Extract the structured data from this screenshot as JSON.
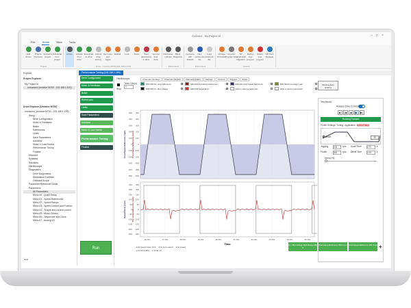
{
  "window": {
    "title": "Connect - My Project.ld"
  },
  "menu": [
    "File",
    "Home",
    "View",
    "Tools"
  ],
  "ribbon": {
    "groups": [
      {
        "label": "Project",
        "items": [
          {
            "label": "Add drives",
            "color": "#3a9b4a"
          },
          {
            "label": "Project Overview",
            "color": "#4a6fb0"
          },
          {
            "label": "Upload to project",
            "color": "#3a9b4a"
          },
          {
            "label": "Download from project",
            "color": "#3a9b4a"
          }
        ]
      },
      {
        "label": "Drive - Unidrive M700 (192.168.1.100)",
        "items": [
          {
            "label": "Online",
            "color": "#555",
            "selected": true
          },
          {
            "label": "Upload from drive",
            "color": "#3a9b4a"
          },
          {
            "label": "Download to drive",
            "color": "#3a9b4a"
          },
          {
            "label": "Cancel drive activity",
            "color": "#bbb"
          },
          {
            "label": "Set motor and digital",
            "color": "#e07a30"
          },
          {
            "label": "Default",
            "color": "#e07a30"
          },
          {
            "label": "Lock",
            "color": "#bbb"
          },
          {
            "label": "Reset",
            "color": "#e07a30"
          },
          {
            "label": "Save parameters in drive",
            "color": "#c0304a"
          },
          {
            "label": "Set real time clock",
            "color": "#e07a30"
          }
        ]
      },
      {
        "label": "Parameters",
        "items": [
          {
            "label": "Parameter Listings",
            "color": "#555"
          },
          {
            "label": "Block Diagrams",
            "color": "#555"
          }
        ]
      },
      {
        "label": "Parameters",
        "items": [
          {
            "label": "Compare with defaults",
            "color": "#999"
          },
          {
            "label": "New parameter file",
            "color": "#2a5ab0"
          },
          {
            "label": "Load parameter file",
            "color": "#ccc"
          }
        ]
      },
      {
        "label": "Actions",
        "items": [
          {
            "label": "Change Firmware",
            "color": "#e07a30"
          },
          {
            "label": "Keypad Programming",
            "color": "#777"
          },
          {
            "label": "SP Unidrive/M Migration",
            "color": "#e07a30"
          },
          {
            "label": "Deploy user program",
            "color": "#e07a30"
          },
          {
            "label": "Delete user program",
            "color": "#d03030"
          },
          {
            "label": "SD Card Manager",
            "color": "#2a7ac0"
          }
        ]
      }
    ]
  },
  "explorer": {
    "title": "Explorer",
    "project_header": "Project Explorer",
    "project_items": [
      "My Project.ld",
      "Unnamed (Unidrive M700 - 192.168.1.100)"
    ],
    "drive_header": "Drive Explorer (Unidrive M700)",
    "drive_items": [
      "Unnamed (Unidrive M700 - 192.168.1.100)",
      "Setup",
      "Drive Configuration",
      "Motor & Feedback",
      "Brake",
      "References",
      "Limits",
      "Save Parameters",
      "Autotune",
      "Motor & Load Inertia",
      "Performance Tuning",
      "Finalise",
      "Ethernet",
      "Systems",
      "Solutions",
      "Oscilloscope",
      "Diagnostics",
      "Drive Diagnostics",
      "Destination Conflicts",
      "Onboard Scope",
      "Parameter Reference Guide",
      "Parameters",
      "All Parameters",
      "Menu 00 - Quick Setup",
      "Menu 01 - Speed References",
      "Menu 02 - Speed Ramps",
      "Menu 03 - Speed Control and Position",
      "Menu 04 - Torque and current control",
      "Menu 05 - Motor Control",
      "Menu 06 - Sequencer and Clock",
      "Menu 07 - Analog I/O"
    ],
    "help": "Help"
  },
  "doc_tab": "Performance Tuning (192.168.1.100)",
  "nav": [
    "Drive Configuration",
    "Motor & Feedback",
    "Brake",
    "References",
    "Limits",
    "Save Parameters",
    "Autotune",
    "Motor & Load Inertia",
    "Performance Tuning",
    "Finalise"
  ],
  "run_label": "Run",
  "scope": {
    "label": "Oscilloscope",
    "stop_label": "Stop",
    "timediv_label": "Time / Div(s)",
    "timediv_value": "1",
    "tabs": [
      "Channels (Analog)",
      "Channels (Digital)",
      "Channels (Math)",
      "Settings",
      "Cursors",
      "Triggers",
      "Notes"
    ],
    "channels": [
      {
        "label": "M00.000 Pre ramp Reference",
        "color": "#1a8a7a",
        "checked": true
      },
      {
        "label": "M02.001 Post Ramp Reference",
        "color": "#8b1a1a",
        "checked": true
      },
      {
        "label": "M03.001 Final Speed Reference",
        "color": "#2a2a6a",
        "checked": true
      },
      {
        "label": "M00.000 Percentage Load",
        "color": "#7a8a2a",
        "checked": false
      },
      {
        "label": "M05.005 D.c. Bus Voltage",
        "color": "#111111",
        "checked": false
      },
      {
        "label": "M03.003 Speed Error",
        "color": "#d03030",
        "checked": true
      },
      {
        "label": "Click to select a parameter",
        "color": "#ffffff",
        "checked": false
      },
      {
        "label": "Click to select a parameter",
        "color": "#ffffff",
        "checked": false
      }
    ],
    "restore_button": "Restore Auto Scaling",
    "top_plot": {
      "ylabel1": "Final Speed Reference (rpm)",
      "ylabel2": "Post Ramp Reference (rpm)",
      "yticks": [
        500,
        400,
        300,
        200,
        100,
        0,
        -100,
        -200,
        -300,
        -400,
        -500
      ]
    },
    "bottom_plot": {
      "ylabel1": "Speed Error (rpm)",
      "ylabel2": "Pre ramp Reference (rpm)",
      "yticks": [
        250,
        200,
        150,
        100,
        50,
        0,
        -50,
        -100,
        -150,
        -200,
        -250
      ]
    },
    "xlabel": "Time",
    "xticks": [
      "16.00s",
      "17.00s",
      "18.00s",
      "19.00s",
      "20.00s",
      "21.00s",
      "22.00s",
      "23.00s",
      "24.00s",
      "25.00s"
    ],
    "footer": [
      "At speed lower limit",
      "At zero speed",
      "At speed",
      "Final enable",
      "Final run"
    ],
    "trace_color": "#333344",
    "fill_color": "#c9cbe6",
    "error_color": "#c03030"
  },
  "test_moves": {
    "title": "Test Moves",
    "release_label": "Release Drive Control",
    "release_on": true,
    "transport": [
      "■",
      "|◀",
      "◀",
      "▶",
      "▶|"
    ],
    "status": "Running Forward",
    "profile_tabs": [
      "Profile Settings",
      "Tuning",
      "Application",
      "Inertia Ramp"
    ],
    "boost_label": "Boost",
    "boost_checked": true,
    "ramp_value": "50",
    "jogging_label": "Jogging",
    "jogging_value": "100",
    "accel_label": "Accel Time",
    "accel_value": "0.70",
    "profile_label": "Profile",
    "profile_value": "500",
    "decel_label": "Decel Time",
    "decel_value": "0.00",
    "unit": "rpm",
    "time_unit": "s",
    "damp_label": "Damp (%)"
  },
  "bottom_buttons": [
    "D.c. Bus Voltage High Range 440 V",
    "Post Ramp Reference 250.0 rpm",
    "Final Speed Reference 250.0 rpm"
  ]
}
